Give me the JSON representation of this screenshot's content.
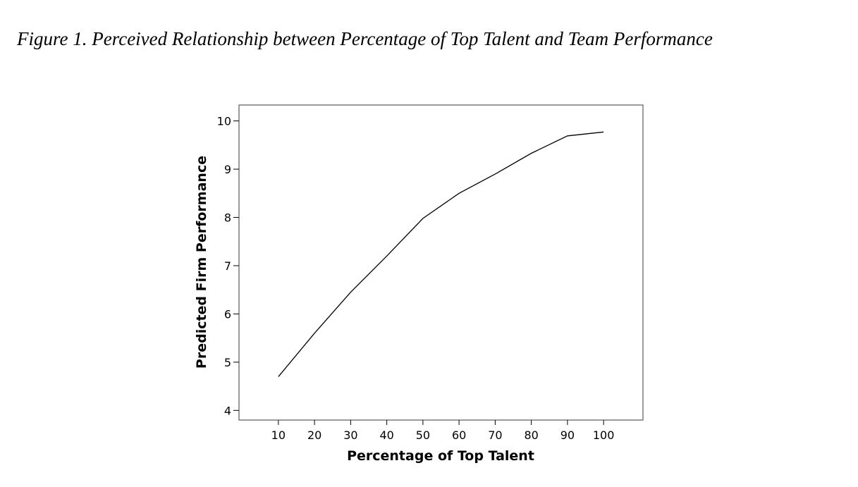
{
  "figure_caption": "Figure 1. Perceived Relationship between Percentage of Top Talent and Team Performance",
  "chart_data": {
    "type": "line",
    "title": "",
    "xlabel": "Percentage of Top Talent",
    "ylabel": "Predicted Firm Performance",
    "x": [
      10,
      20,
      30,
      40,
      50,
      60,
      70,
      80,
      90,
      100
    ],
    "series": [
      {
        "values": [
          4.7,
          5.6,
          6.45,
          7.2,
          7.98,
          8.5,
          8.9,
          9.33,
          9.69,
          9.77
        ]
      }
    ],
    "xticks": [
      10,
      20,
      30,
      40,
      50,
      60,
      70,
      80,
      90,
      100
    ],
    "yticks": [
      4,
      5,
      6,
      7,
      8,
      9,
      10
    ],
    "xlim": [
      -0.9,
      110.9
    ],
    "ylim": [
      3.8,
      10.33
    ],
    "grid": false,
    "line_color": "#000000"
  }
}
